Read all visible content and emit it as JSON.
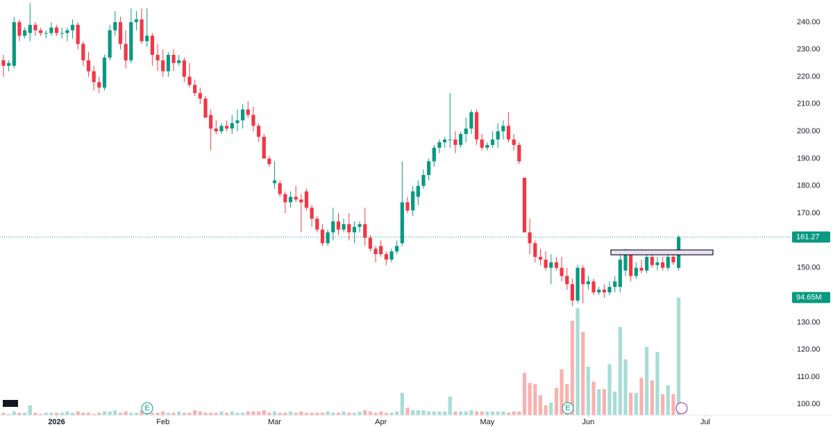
{
  "chart_data": {
    "type": "candlestick",
    "colors": {
      "up": "#089981",
      "down": "#f23645",
      "volume_up": "#a8dcd5",
      "volume_down": "#f7b2b0"
    },
    "xlim": [
      -0.65,
      148.2
    ],
    "xticks": [
      {
        "value": 10,
        "label": "2026"
      },
      {
        "value": 30,
        "label": "Feb"
      },
      {
        "value": 51,
        "label": "Mar"
      },
      {
        "value": 71,
        "label": "Apr"
      },
      {
        "value": 91,
        "label": "May"
      },
      {
        "value": 110,
        "label": "Jun"
      },
      {
        "value": 132,
        "label": "Jul"
      }
    ],
    "ylim": [
      95.5,
      248.1
    ],
    "yticks": [
      {
        "value": 100,
        "label": "100.00"
      },
      {
        "value": 110,
        "label": "110.00"
      },
      {
        "value": 120,
        "label": "120.00"
      },
      {
        "value": 130,
        "label": "130.00"
      },
      {
        "value": 140,
        "label": "140.00"
      },
      {
        "value": 150,
        "label": "150.00"
      },
      {
        "value": 160,
        "label": "160.00"
      },
      {
        "value": 170,
        "label": "170.00"
      },
      {
        "value": 180,
        "label": "180.00"
      },
      {
        "value": 190,
        "label": "190.00"
      },
      {
        "value": 200,
        "label": "200.00"
      },
      {
        "value": 210,
        "label": "210.00"
      },
      {
        "value": 220,
        "label": "220.00"
      },
      {
        "value": 230,
        "label": "230.00"
      },
      {
        "value": 240,
        "label": "240.00"
      }
    ],
    "vlim": [
      0,
      334
    ],
    "markers": [
      "E",
      "E"
    ],
    "ohlc": [
      [
        226,
        228,
        220,
        224
      ],
      [
        224,
        226,
        222,
        225
      ],
      [
        224,
        242,
        223,
        240
      ],
      [
        240,
        241,
        233,
        235
      ],
      [
        235,
        238,
        234,
        237
      ],
      [
        236,
        247,
        233,
        239
      ],
      [
        239,
        240,
        235,
        237
      ],
      [
        237,
        238,
        235,
        236
      ],
      [
        236,
        237,
        234,
        236
      ],
      [
        236,
        240,
        235,
        238
      ],
      [
        238,
        239,
        235,
        236
      ],
      [
        236,
        238,
        234,
        236
      ],
      [
        236,
        238,
        233,
        237
      ],
      [
        237,
        241,
        234,
        239
      ],
      [
        239,
        240,
        230,
        232
      ],
      [
        232,
        233,
        224,
        226
      ],
      [
        226,
        229,
        220,
        222
      ],
      [
        222,
        224,
        215,
        218
      ],
      [
        218,
        220,
        214,
        216
      ],
      [
        216,
        228,
        215,
        227
      ],
      [
        227,
        239,
        226,
        237
      ],
      [
        237,
        244,
        235,
        240
      ],
      [
        240,
        242,
        230,
        232
      ],
      [
        232,
        237,
        223,
        226
      ],
      [
        226,
        245,
        225,
        240
      ],
      [
        240,
        244,
        237,
        241
      ],
      [
        241,
        245,
        232,
        233
      ],
      [
        233,
        245,
        231,
        235
      ],
      [
        235,
        236,
        224,
        228
      ],
      [
        228,
        232,
        222,
        226
      ],
      [
        226,
        230,
        220,
        222
      ],
      [
        222,
        229,
        220,
        228
      ],
      [
        228,
        230,
        222,
        225
      ],
      [
        225,
        228,
        224,
        226
      ],
      [
        226,
        227,
        218,
        220
      ],
      [
        220,
        225,
        216,
        217
      ],
      [
        217,
        219,
        213,
        214
      ],
      [
        214,
        216,
        210,
        212
      ],
      [
        212,
        213,
        205,
        205
      ],
      [
        206,
        208,
        193,
        201
      ],
      [
        201,
        204,
        199,
        200
      ],
      [
        200,
        203,
        199,
        202
      ],
      [
        202,
        204,
        200,
        201
      ],
      [
        201,
        206,
        199,
        203
      ],
      [
        203,
        208,
        200,
        204
      ],
      [
        204,
        210,
        201,
        208
      ],
      [
        208,
        211,
        205,
        206
      ],
      [
        206,
        209,
        200,
        202
      ],
      [
        202,
        203,
        196,
        198
      ],
      [
        198,
        199,
        190,
        190
      ],
      [
        190,
        191,
        187,
        188
      ],
      [
        181,
        189,
        179,
        182
      ],
      [
        181,
        182,
        176,
        177
      ],
      [
        177,
        178,
        170,
        174
      ],
      [
        174,
        178,
        172,
        176
      ],
      [
        176,
        180,
        174,
        175
      ],
      [
        175,
        177,
        163,
        174
      ],
      [
        178,
        179,
        171,
        172
      ],
      [
        172,
        173,
        165,
        168
      ],
      [
        168,
        169,
        163,
        164
      ],
      [
        164,
        166,
        158,
        159
      ],
      [
        159,
        164,
        158,
        163
      ],
      [
        163,
        172,
        160,
        167
      ],
      [
        167,
        170,
        162,
        164
      ],
      [
        164,
        168,
        163,
        166
      ],
      [
        166,
        170,
        160,
        163
      ],
      [
        163,
        167,
        159,
        165
      ],
      [
        165,
        167,
        163,
        166
      ],
      [
        166,
        172,
        158,
        161
      ],
      [
        161,
        162,
        156,
        157
      ],
      [
        157,
        158,
        152,
        155
      ],
      [
        158,
        160,
        154,
        155
      ],
      [
        155,
        156,
        151,
        153
      ],
      [
        153,
        157,
        152,
        156
      ],
      [
        156,
        160,
        155,
        158
      ],
      [
        159,
        189,
        158,
        174
      ],
      [
        174,
        176,
        170,
        171
      ],
      [
        171,
        180,
        169,
        178
      ],
      [
        176,
        182,
        173,
        180
      ],
      [
        180,
        186,
        179,
        184
      ],
      [
        184,
        190,
        182,
        189
      ],
      [
        189,
        195,
        187,
        194
      ],
      [
        194,
        197,
        192,
        196
      ],
      [
        196,
        198,
        194,
        197
      ],
      [
        197,
        214,
        194,
        197
      ],
      [
        197,
        200,
        192,
        195
      ],
      [
        195,
        200,
        194,
        199
      ],
      [
        199,
        205,
        196,
        201
      ],
      [
        201,
        208,
        199,
        207
      ],
      [
        207,
        208,
        195,
        197
      ],
      [
        197,
        199,
        193,
        194
      ],
      [
        194,
        196,
        193,
        195
      ],
      [
        195,
        200,
        194,
        197
      ],
      [
        197,
        203,
        194,
        200
      ],
      [
        200,
        204,
        197,
        202
      ],
      [
        202,
        207,
        196,
        197
      ],
      [
        197,
        199,
        193,
        195
      ],
      [
        195,
        196,
        188,
        189
      ],
      [
        183,
        183,
        163,
        163
      ],
      [
        163,
        168,
        155,
        159
      ],
      [
        159,
        160,
        152,
        154
      ],
      [
        154,
        157,
        151,
        153
      ],
      [
        153,
        156,
        149,
        150
      ],
      [
        150,
        155,
        144,
        152
      ],
      [
        152,
        154,
        149,
        150
      ],
      [
        150,
        154,
        145,
        147
      ],
      [
        147,
        150,
        142,
        144
      ],
      [
        144,
        146,
        136,
        138
      ],
      [
        138,
        151,
        137,
        150
      ],
      [
        150,
        151,
        137,
        144
      ],
      [
        144,
        147,
        142,
        145
      ],
      [
        145,
        146,
        140,
        141
      ],
      [
        141,
        143,
        140,
        142
      ],
      [
        142,
        144,
        139,
        141
      ],
      [
        141,
        145,
        140,
        143
      ],
      [
        143,
        147,
        141,
        145
      ],
      [
        143,
        156,
        141,
        153
      ],
      [
        149,
        157,
        147,
        155
      ],
      [
        155,
        156,
        145,
        147
      ],
      [
        147,
        152,
        146,
        150
      ],
      [
        150,
        153,
        148,
        149
      ],
      [
        149,
        156,
        148,
        154
      ],
      [
        154,
        156,
        150,
        151
      ],
      [
        151,
        154,
        149,
        152
      ],
      [
        152,
        154,
        149,
        150
      ],
      [
        150,
        155,
        149,
        154
      ],
      [
        154,
        156,
        151,
        152
      ],
      [
        150,
        162,
        149,
        161.27
      ]
    ],
    "volume": {
      "values": [
        2,
        1,
        3,
        2,
        2,
        8,
        2,
        1,
        2,
        2,
        2,
        2,
        3,
        2,
        3,
        2,
        2,
        1,
        2,
        3,
        3,
        4,
        2,
        3,
        2,
        2,
        4,
        2,
        2,
        2,
        3,
        2,
        2,
        3,
        2,
        2,
        4,
        3,
        2,
        2,
        2,
        3,
        2,
        3,
        2,
        2,
        3,
        3,
        3,
        4,
        2,
        3,
        2,
        2,
        3,
        2,
        3,
        2,
        2,
        2,
        2,
        3,
        2,
        2,
        3,
        2,
        2,
        3,
        4,
        3,
        2,
        3,
        2,
        2,
        3,
        18,
        6,
        4,
        4,
        4,
        3,
        3,
        3,
        3,
        15,
        3,
        3,
        3,
        4,
        3,
        3,
        3,
        3,
        3,
        3,
        2,
        3,
        3,
        34,
        26,
        25,
        16,
        8,
        10,
        22,
        37,
        25,
        76,
        86,
        67,
        39,
        27,
        21,
        21,
        41,
        19,
        71,
        45,
        18,
        18,
        30,
        55,
        28,
        51,
        17,
        24,
        17,
        94.65
      ],
      "value_labels": [
        null,
        null,
        null,
        null,
        null,
        null,
        null,
        null,
        null,
        null,
        null,
        null,
        null,
        null,
        null,
        null,
        null,
        null,
        null,
        null,
        null,
        null,
        null,
        null,
        null,
        null,
        null,
        null,
        null,
        null,
        null,
        null,
        null,
        null,
        null,
        null,
        null,
        null,
        null,
        null,
        null,
        null,
        null,
        null,
        null,
        null,
        null,
        null,
        null,
        null,
        null,
        null,
        null,
        null,
        null,
        null,
        null,
        null,
        null,
        null,
        null,
        null,
        null,
        null,
        null,
        null,
        null,
        null,
        null,
        null,
        null,
        null,
        null,
        null,
        null,
        null,
        null,
        null,
        null,
        null,
        null,
        null,
        null,
        null,
        null,
        null,
        null,
        null,
        null,
        null,
        null,
        null,
        null,
        null,
        null,
        null,
        null,
        null,
        null,
        null,
        null,
        null,
        null,
        null,
        null,
        null,
        null,
        null,
        null,
        null,
        null,
        null,
        null,
        null,
        null,
        null,
        null,
        null,
        null,
        null,
        null,
        null,
        null,
        null,
        null,
        null,
        null,
        "94.65M"
      ]
    }
  }
}
